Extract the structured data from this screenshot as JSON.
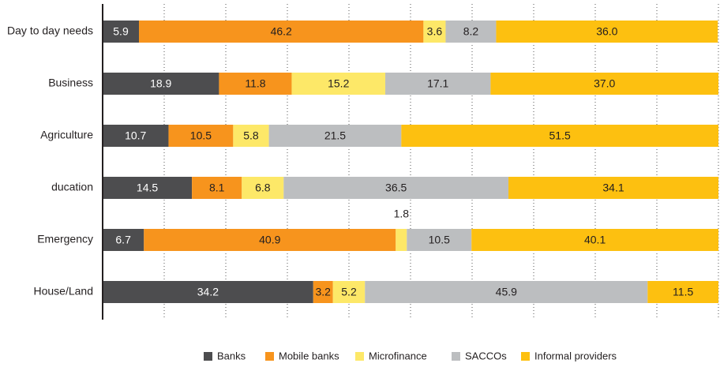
{
  "chart_data": {
    "type": "bar",
    "orientation": "horizontal",
    "stacked": true,
    "categories": [
      "Day to day needs",
      "Business",
      "Agriculture",
      "ducation",
      "Emergency",
      "House/Land"
    ],
    "series": [
      {
        "name": "Banks",
        "color": "#4d4d4f",
        "values": [
          5.9,
          18.9,
          10.7,
          14.5,
          6.7,
          34.2
        ],
        "value_labels": [
          "5.9",
          "18.9",
          "10.7",
          "14.5",
          "6.7",
          "34.2"
        ]
      },
      {
        "name": "Mobile banks",
        "color": "#f7941d",
        "values": [
          46.2,
          11.8,
          10.5,
          8.1,
          40.9,
          3.2
        ],
        "value_labels": [
          "46.2",
          "11.8",
          "10.5",
          "8.1",
          "40.9",
          "3.2"
        ]
      },
      {
        "name": "Microfinance",
        "color": "#fde868",
        "values": [
          3.6,
          15.2,
          5.8,
          6.8,
          1.8,
          5.2
        ],
        "value_labels": [
          "3.6",
          "15.2",
          "5.8",
          "6.8",
          "1.8",
          "5.2"
        ]
      },
      {
        "name": "SACCOs",
        "color": "#bcbec0",
        "values": [
          8.2,
          17.1,
          21.5,
          36.5,
          10.5,
          45.9
        ],
        "value_labels": [
          "8.2",
          "17.1",
          "21.5",
          "36.5",
          "10.5",
          "45.9"
        ]
      },
      {
        "name": "Informal providers",
        "color": "#fdc010",
        "values": [
          36.0,
          37.0,
          51.5,
          34.1,
          40.1,
          11.5
        ],
        "value_labels": [
          "36.0",
          "37.0",
          "51.5",
          "34.1",
          "40.1",
          "11.5"
        ]
      }
    ],
    "xlim": [
      0,
      100
    ],
    "xticks": [
      10,
      20,
      30,
      40,
      50,
      60,
      70,
      80,
      90,
      100
    ],
    "grid": true,
    "legend": "bottom"
  }
}
